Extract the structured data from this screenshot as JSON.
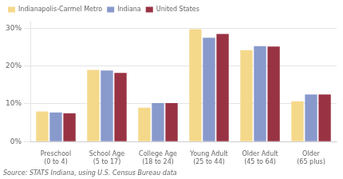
{
  "chart_data": {
    "type": "bar",
    "categories": [
      "Preschool\n(0 to 4)",
      "School Age\n(5 to 17)",
      "College Age\n(18 to 24)",
      "Young Adult\n(25 to 44)",
      "Older Adult\n(45 to 64)",
      "Older\n(65 plus)"
    ],
    "series": [
      {
        "name": "Indianapolis-Carmel Metro",
        "color": "#F5D98B",
        "values": [
          8.0,
          19.0,
          9.0,
          29.8,
          24.2,
          10.7
        ]
      },
      {
        "name": "Indiana",
        "color": "#8899CC",
        "values": [
          7.7,
          18.8,
          10.2,
          27.5,
          25.3,
          12.5
        ]
      },
      {
        "name": "United States",
        "color": "#993344",
        "values": [
          7.5,
          18.2,
          10.2,
          28.5,
          25.2,
          12.5
        ]
      }
    ],
    "ylim": [
      0,
      32
    ],
    "yticks": [
      {
        "value": 0,
        "label": "0%"
      },
      {
        "value": 10,
        "label": "10%"
      },
      {
        "value": 20,
        "label": "20%"
      },
      {
        "value": 30,
        "label": "30%"
      }
    ],
    "grid": true,
    "legend": "upper left",
    "annotations": [
      "Source: STATS Indiana, using U.S. Census Bureau data"
    ]
  }
}
